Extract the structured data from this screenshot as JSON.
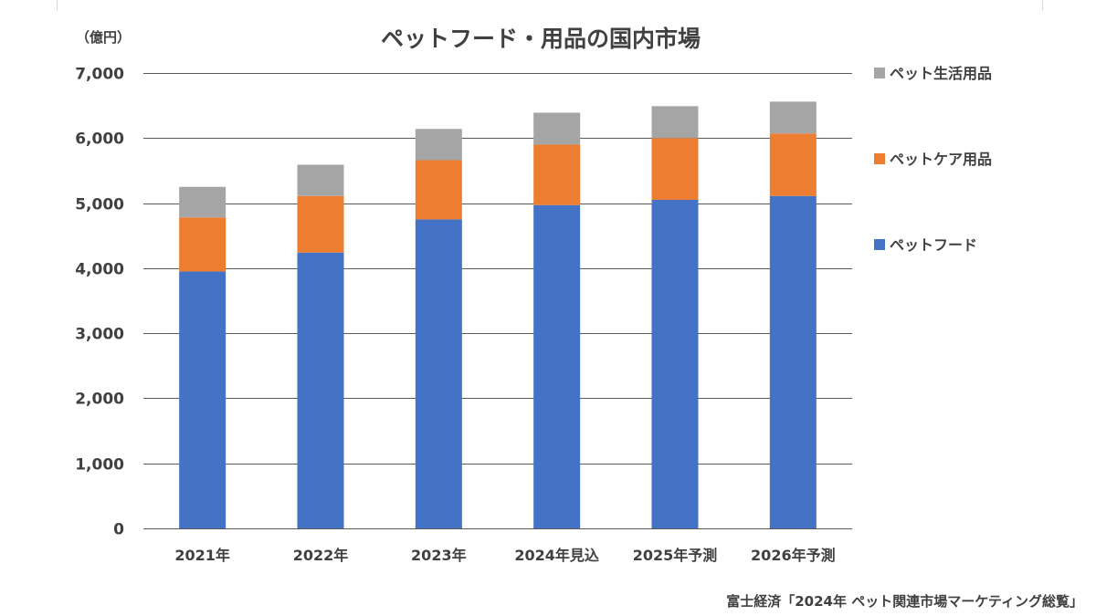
{
  "chart_data": {
    "type": "bar",
    "stacked": true,
    "title": "ペットフード・用品の国内市場",
    "unit_label": "（億円）",
    "categories": [
      "2021年",
      "2022年",
      "2023年",
      "2024年見込",
      "2025年予測",
      "2026年予測"
    ],
    "series": [
      {
        "name": "ペットフード",
        "color": "#4472c4",
        "values": [
          3950,
          4240,
          4750,
          4970,
          5050,
          5110
        ]
      },
      {
        "name": "ペットケア用品",
        "color": "#ed7d31",
        "values": [
          830,
          870,
          910,
          930,
          950,
          960
        ]
      },
      {
        "name": "ペット生活用品",
        "color": "#a5a5a5",
        "values": [
          470,
          480,
          480,
          490,
          490,
          490
        ]
      }
    ],
    "ylim": [
      0,
      7000
    ],
    "yticks": [
      0,
      1000,
      2000,
      3000,
      4000,
      5000,
      6000,
      7000
    ],
    "ytick_labels": [
      "0",
      "1,000",
      "2,000",
      "3,000",
      "4,000",
      "5,000",
      "6,000",
      "7,000"
    ],
    "grid": true,
    "legend_position": "right",
    "legend_order": [
      "ペット生活用品",
      "ペットケア用品",
      "ペットフード"
    ],
    "source": "富士経済「2024年 ペット関連市場マーケティング総覧」"
  }
}
